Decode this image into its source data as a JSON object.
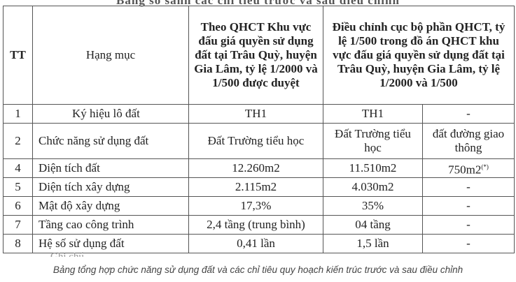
{
  "header_cut_text": "Bảng so sánh các chỉ tiêu trước và sau điều chỉnh",
  "table": {
    "headers": {
      "tt": "TT",
      "item": "Hạng mục",
      "original": "Theo QHCT Khu vực đấu giá quyền sử dụng đất tại Trâu Quỳ, huyện Gia Lâm, tỷ lệ 1/2000 và 1/500 được duyệt",
      "adjusted": "Điều chỉnh cục bộ phần QHCT, tỷ lệ 1/500 trong đồ án QHCT khu vực đấu giá quyền sử dụng đất tại Trâu Quỳ, huyện Gia Lâm, tỷ lệ 1/2000 và 1/500"
    },
    "rows": [
      {
        "tt": "1",
        "item": "Ký hiệu lô đất",
        "original": "TH1",
        "adjusted_a": "TH1",
        "adjusted_b": "-"
      },
      {
        "tt": "2",
        "item": "Chức năng sử dụng đất",
        "original": "Đất Trường tiểu học",
        "adjusted_a": "Đất Trường tiểu học",
        "adjusted_b": "đất đường giao thông"
      },
      {
        "tt": "4",
        "item": "Diện tích đất",
        "original": "12.260m2",
        "adjusted_a": "11.510m2",
        "adjusted_b": "750m2",
        "adjusted_b_sup": "(*)"
      },
      {
        "tt": "5",
        "item": "Diện tích xây dựng",
        "original": "2.115m2",
        "adjusted_a": "4.030m2",
        "adjusted_b": "-"
      },
      {
        "tt": "6",
        "item": "Mật độ xây dựng",
        "original": "17,3%",
        "adjusted_a": "35%",
        "adjusted_b": "-"
      },
      {
        "tt": "7",
        "item": "Tầng cao công trình",
        "original": "2,4 tầng (trung bình)",
        "adjusted_a": "04 tầng",
        "adjusted_b": "-"
      },
      {
        "tt": "8",
        "item": "Hệ số sử dụng đất",
        "original": "0,41 lần",
        "adjusted_a": "1,5 lần",
        "adjusted_b": "-"
      }
    ]
  },
  "note_cut_text": "Ghi chú",
  "caption": "Bảng tổng hợp chức năng sử dụng đất và các chỉ tiêu quy hoạch kiến trúc trước và sau điều chỉnh"
}
